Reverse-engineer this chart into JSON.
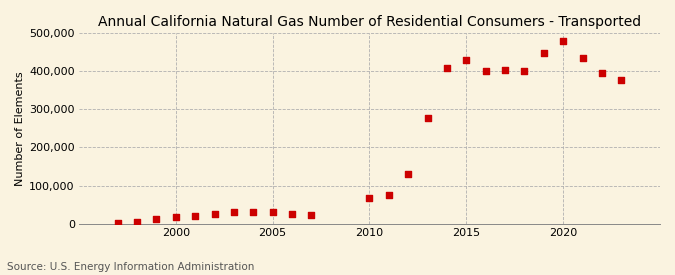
{
  "title": "Annual California Natural Gas Number of Residential Consumers - Transported",
  "ylabel": "Number of Elements",
  "source": "Source: U.S. Energy Information Administration",
  "background_color": "#faf3e0",
  "marker_color": "#cc0000",
  "years": [
    1997,
    1998,
    1999,
    2000,
    2001,
    2002,
    2003,
    2004,
    2005,
    2006,
    2007,
    2010,
    2011,
    2012,
    2013,
    2014,
    2015,
    2016,
    2017,
    2018,
    2019,
    2020,
    2021,
    2022,
    2023
  ],
  "values": [
    2000,
    5000,
    12000,
    18000,
    20000,
    25000,
    32000,
    30000,
    30000,
    26000,
    23000,
    68000,
    75000,
    130000,
    278000,
    408000,
    430000,
    400000,
    403000,
    400000,
    447000,
    479000,
    435000,
    395000,
    378000
  ],
  "ylim": [
    0,
    500000
  ],
  "yticks": [
    0,
    100000,
    200000,
    300000,
    400000,
    500000
  ],
  "xlim": [
    1995,
    2025
  ],
  "xtick_major": [
    2000,
    2005,
    2010,
    2015,
    2020
  ],
  "title_fontsize": 10,
  "ylabel_fontsize": 8,
  "tick_fontsize": 8,
  "source_fontsize": 7.5,
  "marker_size": 15
}
